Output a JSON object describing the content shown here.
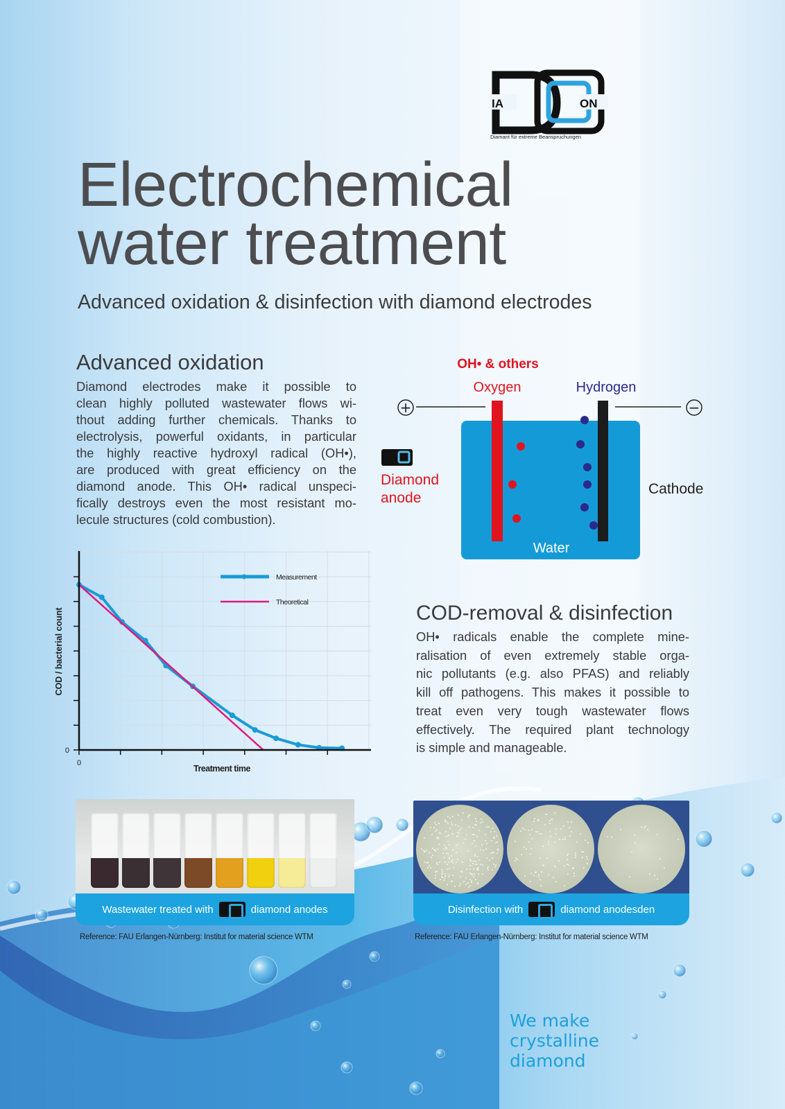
{
  "logo": {
    "left_text": "IA",
    "right_text": "ON",
    "tagline": "Diamant für extreme Beanspruchungen"
  },
  "title": {
    "line1": "Electrochemical",
    "line2": "water treatment"
  },
  "subtitle": "Advanced oxidation & disinfection with diamond electrodes",
  "advanced_oxidation": {
    "heading": "Advanced oxidation",
    "lines": [
      "Diamond electrodes make it possible to",
      "clean highly polluted wastewater flows wi-",
      "thout adding further chemicals. Thanks to",
      "electrolysis, powerful oxidants, in particular",
      "the highly reactive hydroxyl radical (OH•),",
      "are produced with great efficiency on the",
      "diamond anode. This OH• radical unspeci-",
      "fically destroys even the most resistant mo-",
      "lecule structures (cold combustion)."
    ]
  },
  "diagram": {
    "oh_label": "OH• & others",
    "oxygen_label": "Oxygen",
    "hydrogen_label": "Hydrogen",
    "plus_symbol": "+",
    "minus_symbol": "−",
    "anode_label_1": "Diamond",
    "anode_label_2": "anode",
    "cathode_label": "Cathode",
    "water_label": "Water",
    "colors": {
      "anode": "#e0141e",
      "cathode": "#1c1c1c",
      "water": "#159ad8",
      "oxygen_dots": "#e0141e",
      "hydrogen_dots": "#2b2a8c"
    }
  },
  "chart_data": {
    "type": "line",
    "title": "",
    "xlabel": "Treatment time",
    "ylabel": "COD / bacterial count",
    "x_tick_labels": [
      "0"
    ],
    "y_tick_labels": [
      "0"
    ],
    "xlim": [
      0,
      7.05
    ],
    "ylim": [
      0,
      8.05
    ],
    "grid": true,
    "legend": "top-right",
    "series": [
      {
        "name": "Measurement",
        "color": "#1a9bd7",
        "markers": true,
        "x": [
          0,
          0.55,
          1.04,
          1.6,
          2.1,
          2.75,
          3.7,
          4.25,
          4.76,
          5.29,
          5.8,
          6.35
        ],
        "y": [
          6.68,
          6.17,
          5.17,
          4.42,
          3.41,
          2.57,
          1.4,
          0.81,
          0.47,
          0.21,
          0.09,
          0.07
        ]
      },
      {
        "name": "Theoretical",
        "color": "#e0197d",
        "markers": false,
        "x": [
          0,
          4.45
        ],
        "y": [
          6.68,
          0
        ]
      }
    ]
  },
  "cod": {
    "heading": "COD-removal & disinfection",
    "lines": [
      "OH• radicals enable the complete mine-",
      "ralisation of even extremely stable orga-",
      "nic pollutants (e.g. also PFAS) and reliably",
      "kill off pathogens. This makes it possible to",
      "treat even very tough wastewater flows",
      "effectively. The required plant technology",
      "is simple and manageable."
    ]
  },
  "photo_left": {
    "caption_before": "Wastewater treated with",
    "caption_after": "diamond anodes",
    "reference": "Reference: FAU Erlangen-Nürnberg: Institut for material science WTM",
    "vial_colors": [
      "#3a2a2f",
      "#3a3034",
      "#3f3538",
      "#7d4a28",
      "#e2a01e",
      "#f1d010",
      "#f6ec98",
      "#eef0f0"
    ]
  },
  "photo_right": {
    "caption_before": "Disinfection with",
    "caption_after": "diamond anodesden",
    "reference": "Reference: FAU Erlangen-Nürnberg: Institut for material science WTM"
  },
  "slogan": [
    "We make",
    "crystalline",
    "diamond"
  ],
  "colors": {
    "accent": "#1ca3e0",
    "title": "#4d4d4f"
  }
}
